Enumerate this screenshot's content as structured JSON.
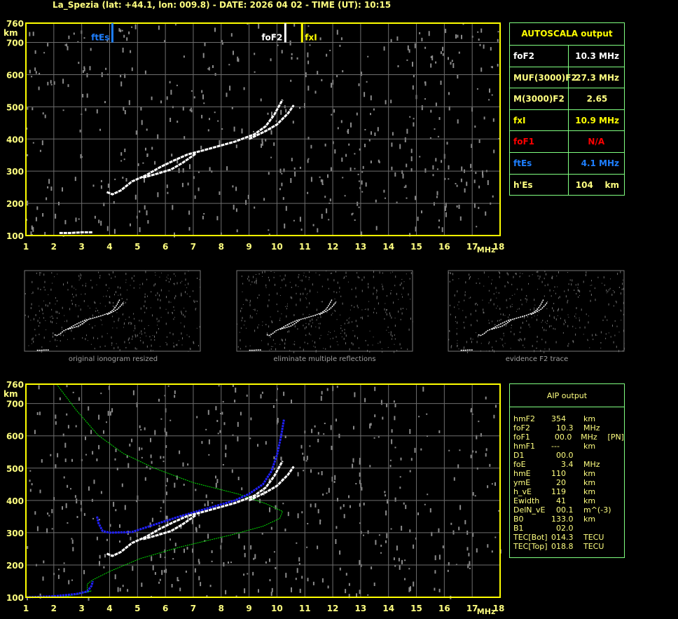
{
  "title": "La_Spezia (lat: +44.1, lon: 009.8) - DATE: 2026 04 02 - TIME (UT): 10:15",
  "colors": {
    "axis": "#ffff00",
    "grid": "#6e6e6e",
    "trace": "#ffffff",
    "ftEs": "#1e7fff",
    "fxI": "#ffff00",
    "foF2": "#ffffff",
    "profile": "#00e000",
    "aip_trace": "#2020ff",
    "table_border": "#80ff80",
    "foF1": "#ff0000"
  },
  "autoscala": {
    "title": "AUTOSCALA output",
    "rows": [
      {
        "label": "foF2",
        "value": "10.3 MHz",
        "color": "#ffffff"
      },
      {
        "label": "MUF(3000)F2",
        "value": "27.3 MHz",
        "color": "#ffff80"
      },
      {
        "label": "M(3000)F2",
        "value": "2.65    ",
        "color": "#ffff80"
      },
      {
        "label": "fxI",
        "value": "10.9 MHz",
        "color": "#ffff00"
      },
      {
        "label": "foF1",
        "value": "N/A     ",
        "color": "#ff0000"
      },
      {
        "label": "ftEs",
        "value": "4.1 MHz",
        "color": "#1e7fff"
      },
      {
        "label": "h'Es",
        "value": "104    km",
        "color": "#ffff80"
      }
    ]
  },
  "aip": {
    "title": "AIP output",
    "rows": [
      [
        "hmF2",
        "354",
        "km",
        ""
      ],
      [
        "foF2",
        "  10.3",
        "MHz",
        ""
      ],
      [
        "foF1",
        "  00.0",
        "MHz",
        "[PN]"
      ],
      [
        "hmF1",
        "---",
        "km",
        ""
      ],
      [
        "D1",
        "  00.0",
        "",
        ""
      ],
      [
        "foE",
        "    3.4",
        "MHz",
        ""
      ],
      [
        "hmE",
        "110",
        "km",
        ""
      ],
      [
        "ymE",
        "  20",
        "km",
        ""
      ],
      [
        "h_vE",
        "119",
        "km",
        ""
      ],
      [
        "Ewidth",
        "  41",
        "km",
        ""
      ],
      [
        "DelN_vE",
        "  00.1",
        "m^(-3)",
        ""
      ],
      [
        "B0",
        "133.0",
        "km",
        ""
      ],
      [
        "B1",
        "  02.0",
        "",
        ""
      ],
      [
        "TEC[Bot]",
        "014.3",
        "TECU",
        ""
      ],
      [
        "TEC[Top]",
        "018.8",
        "TECU",
        ""
      ]
    ]
  },
  "thumbnails": [
    "original ionogram resized",
    "eliminate multiple reflections",
    "evidence F2 trace"
  ],
  "chart_data": [
    {
      "type": "scatter",
      "name_id": "ionogram-autoscala",
      "xlabel": "MHz",
      "ylabel": "km",
      "xlim": [
        1,
        18
      ],
      "ylim": [
        100,
        760
      ],
      "xticks": [
        "1",
        "2",
        "3",
        "4",
        "5",
        "6",
        "7",
        "8",
        "9",
        "10",
        "11",
        "12",
        "13",
        "14",
        "15",
        "16",
        "17",
        "18"
      ],
      "yticks": [
        "760",
        "700",
        "600",
        "500",
        "400",
        "300",
        "200",
        "100"
      ],
      "grid": true,
      "markers": [
        {
          "label": "ftEs",
          "freq": 4.1,
          "color": "#1e7fff"
        },
        {
          "label": "foF2",
          "freq": 10.3,
          "color": "#ffffff"
        },
        {
          "label": "fxI",
          "freq": 10.9,
          "color": "#ffff00"
        }
      ],
      "series": [
        {
          "kind": "o_trace",
          "points": [
            [
              3.9,
              235
            ],
            [
              4.1,
              228
            ],
            [
              4.4,
              240
            ],
            [
              4.8,
              268
            ],
            [
              5.3,
              287
            ],
            [
              5.8,
              312
            ],
            [
              6.3,
              333
            ],
            [
              6.8,
              352
            ],
            [
              7.5,
              368
            ],
            [
              8.5,
              392
            ],
            [
              9.2,
              415
            ],
            [
              9.6,
              440
            ],
            [
              9.9,
              475
            ],
            [
              10.2,
              522
            ]
          ]
        },
        {
          "kind": "x_trace",
          "points": [
            [
              5.2,
              280
            ],
            [
              5.7,
              292
            ],
            [
              6.2,
              305
            ],
            [
              6.6,
              325
            ],
            [
              7.1,
              355
            ]
          ]
        },
        {
          "kind": "x_trace_upper",
          "points": [
            [
              9.0,
              400
            ],
            [
              9.6,
              425
            ],
            [
              10.0,
              445
            ],
            [
              10.4,
              480
            ],
            [
              10.6,
              505
            ]
          ]
        },
        {
          "kind": "es_trace",
          "points": [
            [
              2.2,
              108
            ],
            [
              2.6,
              108
            ],
            [
              3.0,
              110
            ],
            [
              3.4,
              110
            ]
          ]
        }
      ]
    },
    {
      "type": "line",
      "name_id": "ionogram-aip",
      "xlabel": "MHz",
      "ylabel": "km",
      "xlim": [
        1,
        18
      ],
      "ylim": [
        100,
        760
      ],
      "xticks": [
        "1",
        "2",
        "3",
        "4",
        "5",
        "6",
        "7",
        "8",
        "9",
        "10",
        "11",
        "12",
        "13",
        "14",
        "15",
        "16",
        "17",
        "18"
      ],
      "yticks": [
        "760",
        "700",
        "600",
        "500",
        "400",
        "300",
        "200",
        "100"
      ],
      "grid": true,
      "series": [
        {
          "kind": "profile",
          "color": "#00e000",
          "points": [
            [
              2.1,
              760
            ],
            [
              2.8,
              680
            ],
            [
              3.6,
              601
            ],
            [
              4.5,
              545
            ],
            [
              5.6,
              500
            ],
            [
              7.0,
              455
            ],
            [
              8.6,
              420
            ],
            [
              9.6,
              390
            ],
            [
              10.2,
              366
            ],
            [
              10.1,
              344
            ],
            [
              9.5,
              320
            ],
            [
              8.4,
              294
            ],
            [
              6.5,
              255
            ],
            [
              5.1,
              220
            ],
            [
              4.0,
              180
            ],
            [
              3.4,
              154
            ],
            [
              3.2,
              141
            ],
            [
              3.2,
              115
            ],
            [
              3.35,
              120
            ],
            [
              2.8,
              108
            ],
            [
              2.4,
              102
            ],
            [
              1.0,
              100
            ]
          ]
        },
        {
          "kind": "fitted_trace",
          "color": "#2020ff",
          "points": [
            [
              1.0,
              100
            ],
            [
              2.0,
              103
            ],
            [
              2.8,
              110
            ],
            [
              3.2,
              118
            ],
            [
              3.35,
              135
            ],
            [
              3.4,
              150
            ]
          ]
        },
        {
          "kind": "fitted_trace",
          "color": "#2020ff",
          "points": [
            [
              3.55,
              350
            ],
            [
              3.6,
              330
            ],
            [
              3.75,
              305
            ],
            [
              4.0,
              300
            ],
            [
              4.8,
              302
            ],
            [
              5.5,
              322
            ],
            [
              6.5,
              350
            ],
            [
              7.5,
              375
            ],
            [
              8.5,
              400
            ],
            [
              9.0,
              420
            ],
            [
              9.5,
              450
            ],
            [
              9.8,
              490
            ],
            [
              10.0,
              540
            ],
            [
              10.15,
              600
            ],
            [
              10.25,
              650
            ]
          ]
        },
        {
          "kind": "o_trace",
          "color": "#ffffff",
          "points": [
            [
              3.9,
              235
            ],
            [
              4.1,
              228
            ],
            [
              4.4,
              240
            ],
            [
              4.8,
              268
            ],
            [
              5.3,
              287
            ],
            [
              5.8,
              312
            ],
            [
              6.3,
              333
            ],
            [
              6.8,
              352
            ],
            [
              7.5,
              368
            ],
            [
              8.5,
              392
            ],
            [
              9.2,
              415
            ],
            [
              9.6,
              440
            ],
            [
              9.9,
              475
            ],
            [
              10.2,
              522
            ]
          ]
        },
        {
          "kind": "x_trace",
          "color": "#ffffff",
          "points": [
            [
              5.2,
              280
            ],
            [
              5.7,
              292
            ],
            [
              6.2,
              305
            ],
            [
              6.6,
              325
            ],
            [
              7.1,
              355
            ]
          ]
        },
        {
          "kind": "x_trace_upper",
          "color": "#ffffff",
          "points": [
            [
              9.0,
              400
            ],
            [
              9.6,
              425
            ],
            [
              10.0,
              445
            ],
            [
              10.4,
              480
            ],
            [
              10.6,
              505
            ]
          ]
        }
      ]
    }
  ]
}
